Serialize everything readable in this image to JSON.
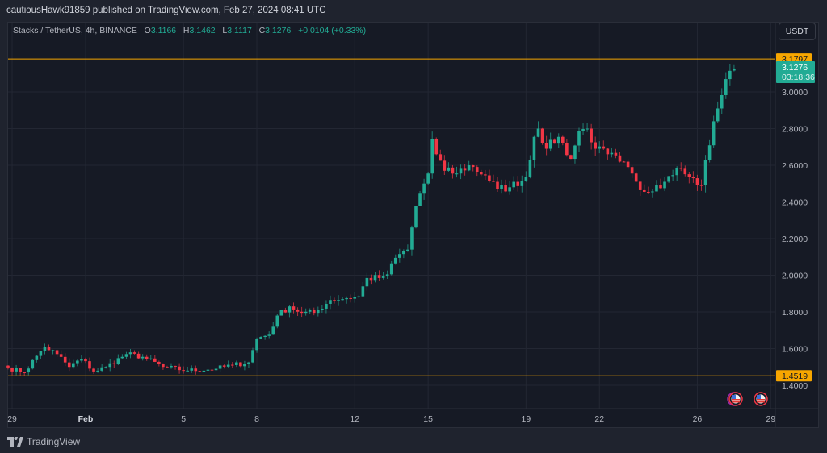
{
  "published": "cautiousHawk91859 published on TradingView.com, Feb 27, 2024 08:41 UTC",
  "legend": {
    "symbol": "Stacks / TetherUS, 4h, BINANCE",
    "o_label": "O",
    "o": "3.1166",
    "h_label": "H",
    "h": "3.1462",
    "l_label": "L",
    "l": "3.1117",
    "c_label": "C",
    "c": "3.1276",
    "change": "+0.0104 (+0.33%)"
  },
  "currency_button": "USDT",
  "footer_logo": "TradingView",
  "colors": {
    "up": "#22ab94",
    "down": "#f23645",
    "level": "#f7a600",
    "bg": "#161a25",
    "grid": "#232733"
  },
  "chart_data": {
    "type": "candlestick",
    "title": "Stacks / TetherUS, 4h, BINANCE",
    "ylim": [
      1.3,
      3.25
    ],
    "y_ticks": [
      "3.0000",
      "2.8000",
      "2.6000",
      "2.4000",
      "2.2000",
      "2.0000",
      "1.8000",
      "1.6000",
      "1.4000"
    ],
    "x_ticks": [
      {
        "label": "29",
        "candle": 1
      },
      {
        "label": "Feb",
        "candle": 19
      },
      {
        "label": "5",
        "candle": 43
      },
      {
        "label": "8",
        "candle": 61
      },
      {
        "label": "12",
        "candle": 85
      },
      {
        "label": "15",
        "candle": 103
      },
      {
        "label": "19",
        "candle": 127
      },
      {
        "label": "22",
        "candle": 145
      },
      {
        "label": "26",
        "candle": 169
      },
      {
        "label": "29",
        "candle": 187
      }
    ],
    "candle_count": 179,
    "close_anchors": [
      [
        0,
        1.497
      ],
      [
        4,
        1.47
      ],
      [
        7,
        1.56
      ],
      [
        9,
        1.61
      ],
      [
        12,
        1.57
      ],
      [
        15,
        1.5
      ],
      [
        18,
        1.545
      ],
      [
        21,
        1.475
      ],
      [
        24,
        1.5
      ],
      [
        29,
        1.57
      ],
      [
        33,
        1.555
      ],
      [
        38,
        1.5
      ],
      [
        44,
        1.48
      ],
      [
        51,
        1.49
      ],
      [
        55,
        1.51
      ],
      [
        59,
        1.525
      ],
      [
        61,
        1.655
      ],
      [
        64,
        1.68
      ],
      [
        66,
        1.78
      ],
      [
        69,
        1.83
      ],
      [
        72,
        1.795
      ],
      [
        75,
        1.795
      ],
      [
        79,
        1.865
      ],
      [
        83,
        1.875
      ],
      [
        86,
        1.885
      ],
      [
        88,
        1.985
      ],
      [
        91,
        1.985
      ],
      [
        93,
        2.005
      ],
      [
        95,
        2.095
      ],
      [
        98,
        2.14
      ],
      [
        100,
        2.38
      ],
      [
        101,
        2.445
      ],
      [
        103,
        2.555
      ],
      [
        104,
        2.745
      ],
      [
        105,
        2.66
      ],
      [
        107,
        2.57
      ],
      [
        110,
        2.555
      ],
      [
        113,
        2.6
      ],
      [
        117,
        2.545
      ],
      [
        120,
        2.47
      ],
      [
        123,
        2.48
      ],
      [
        127,
        2.535
      ],
      [
        129,
        2.755
      ],
      [
        130,
        2.8
      ],
      [
        132,
        2.69
      ],
      [
        135,
        2.755
      ],
      [
        138,
        2.635
      ],
      [
        140,
        2.785
      ],
      [
        142,
        2.8
      ],
      [
        144,
        2.69
      ],
      [
        147,
        2.66
      ],
      [
        150,
        2.62
      ],
      [
        153,
        2.555
      ],
      [
        156,
        2.455
      ],
      [
        159,
        2.49
      ],
      [
        161,
        2.51
      ],
      [
        164,
        2.585
      ],
      [
        167,
        2.535
      ],
      [
        170,
        2.49
      ],
      [
        173,
        2.84
      ],
      [
        174,
        2.91
      ],
      [
        176,
        3.07
      ],
      [
        177,
        3.115
      ]
    ],
    "last_candle": {
      "open": 3.1166,
      "high": 3.1462,
      "low": 3.1117,
      "close": 3.1276
    },
    "last_price_label": "3.1276",
    "countdown": "03:18:36",
    "horizontal_lines": [
      {
        "price": 3.1797,
        "label": "3.1797"
      },
      {
        "price": 1.4519,
        "label": "1.4519"
      }
    ]
  }
}
